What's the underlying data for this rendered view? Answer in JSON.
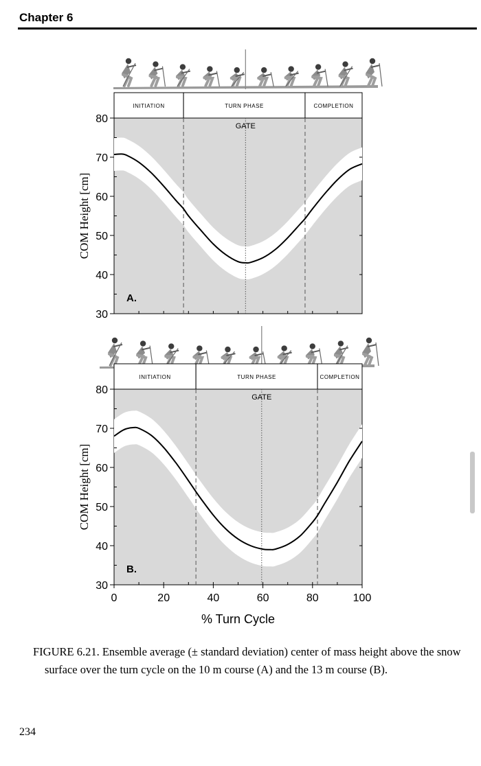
{
  "header": {
    "chapter": "Chapter 6"
  },
  "chart_data": [
    {
      "type": "line",
      "panel_label": "A.",
      "xlim": [
        0,
        100
      ],
      "ylim": [
        30,
        80
      ],
      "yticks": [
        30,
        40,
        50,
        60,
        70,
        80
      ],
      "ylabel": "COM Height [cm]",
      "phases": [
        {
          "label": "INITIATION",
          "end": 28
        },
        {
          "label": "TURN PHASE",
          "end": 77
        },
        {
          "label": "COMPLETION",
          "end": 100
        }
      ],
      "gate": {
        "label": "GATE",
        "x": 53
      },
      "series": [
        {
          "x": [
            0,
            3,
            5,
            10,
            15,
            20,
            25,
            28,
            30,
            35,
            40,
            45,
            50,
            53,
            55,
            60,
            65,
            70,
            75,
            77,
            80,
            85,
            90,
            95,
            100
          ],
          "mean": [
            70.7,
            70.8,
            70.5,
            68.7,
            66.0,
            62.6,
            58.9,
            56.8,
            55.0,
            51.3,
            47.8,
            45.1,
            43.3,
            43.0,
            43.1,
            44.3,
            46.4,
            49.4,
            52.9,
            54.3,
            56.8,
            60.7,
            64.2,
            66.9,
            68.3
          ],
          "sd": 4.2
        }
      ]
    },
    {
      "type": "line",
      "panel_label": "B.",
      "xlim": [
        0,
        100
      ],
      "ylim": [
        30,
        80
      ],
      "yticks": [
        30,
        40,
        50,
        60,
        70,
        80
      ],
      "ylabel": "COM Height [cm]",
      "xticks": [
        0,
        20,
        40,
        60,
        80,
        100
      ],
      "xlabel": "% Turn Cycle",
      "phases": [
        {
          "label": "INITIATION",
          "end": 33
        },
        {
          "label": "TURN PHASE",
          "end": 82
        },
        {
          "label": "COMPLETION",
          "end": 100
        }
      ],
      "gate": {
        "label": "GATE",
        "x": 59.5
      },
      "series": [
        {
          "x": [
            0,
            3,
            5,
            8,
            10,
            15,
            20,
            25,
            30,
            33,
            35,
            40,
            45,
            50,
            55,
            60,
            63,
            65,
            70,
            75,
            80,
            82,
            85,
            90,
            95,
            100
          ],
          "mean": [
            68.0,
            69.3,
            69.9,
            70.2,
            70.0,
            68.2,
            65.1,
            61.1,
            56.6,
            53.8,
            52.0,
            47.8,
            44.3,
            41.7,
            40.0,
            39.1,
            39.0,
            39.1,
            40.3,
            42.5,
            46.0,
            47.7,
            50.9,
            56.2,
            61.8,
            66.7
          ],
          "sd": 4.3
        }
      ]
    }
  ],
  "caption": "FIGURE 6.21.  Ensemble average (± standard deviation) center of mass height above the snow surface over the turn cycle on the 10 m course (A) and the 13 m course (B).",
  "page_number": "234"
}
